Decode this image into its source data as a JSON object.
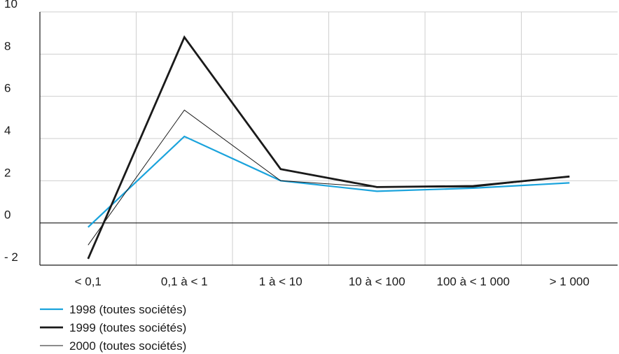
{
  "chart_data": {
    "type": "line",
    "categories": [
      "< 0,1",
      "0,1 à <  1",
      "1 à < 10",
      "10 à < 100",
      "100 à < 1 000",
      "> 1 000"
    ],
    "y_tick_labels": [
      "- 2",
      "0",
      "2",
      "4",
      "6",
      "8",
      "10"
    ],
    "ylim": [
      -2,
      10
    ],
    "grid": true,
    "legend_position": "bottom-left",
    "series": [
      {
        "name": "1998 (toutes sociétés)",
        "color": "#1aa3dc",
        "width": "medium",
        "values": [
          -0.2,
          4.1,
          2.0,
          1.5,
          1.65,
          1.9
        ]
      },
      {
        "name": "1999 (toutes sociétés)",
        "color": "#1a1a1a",
        "width": "thick",
        "values": [
          -1.7,
          8.8,
          2.55,
          1.7,
          1.75,
          2.2
        ]
      },
      {
        "name": "2000 (toutes sociétés)",
        "color": "#1a1a1a",
        "width": "thin",
        "values": [
          -1.05,
          5.35,
          2.0,
          1.7,
          1.7,
          2.2
        ]
      }
    ]
  }
}
